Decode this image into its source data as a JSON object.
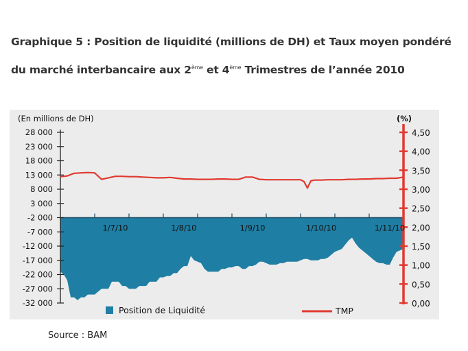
{
  "title": {
    "line1": "Graphique 5 : Position de liquidité (millions de DH) et Taux moyen pondéré",
    "line2_pre": "du marché interbancaire aux 2",
    "sup1": "ème",
    "line2_mid": " et 4",
    "sup2": "ème",
    "line2_post": " Trimestres de l’année 2010"
  },
  "source": "Source : BAM",
  "chart_data": {
    "type": "area",
    "left_axis_label": "(En millions de DH)",
    "right_axis_label": "(%)",
    "left_axis": {
      "range": [
        -32000,
        28000
      ],
      "ticks": [
        "28 000",
        "23 000",
        "18 000",
        "13 000",
        "8 000",
        "3 000",
        "-2 000",
        "-7 000",
        "-12 000",
        "-17 000",
        "-22 000",
        "-27 000",
        "-32 000"
      ],
      "tick_values": [
        28000,
        23000,
        18000,
        13000,
        8000,
        3000,
        -2000,
        -7000,
        -12000,
        -17000,
        -22000,
        -27000,
        -32000
      ]
    },
    "right_axis": {
      "range": [
        0,
        4.5
      ],
      "ticks": [
        "4,50",
        "4,00",
        "3,50",
        "3,00",
        "2,50",
        "2,00",
        "1,50",
        "1,00",
        "0,50",
        "0,00"
      ],
      "tick_values": [
        4.5,
        4.0,
        3.5,
        3.0,
        2.5,
        2.0,
        1.5,
        1.0,
        0.5,
        0.0
      ]
    },
    "x_labels": [
      "1/7/10",
      "1/8/10",
      "1/9/10",
      "1/10/10",
      "1/11/10"
    ],
    "x_label_index": [
      16,
      36,
      56,
      76,
      96
    ],
    "x_range": [
      0,
      100
    ],
    "legend": [
      {
        "name": "Position de Liquidité",
        "color": "#1f7ea3"
      },
      {
        "name": "TMP",
        "color": "#e03a30"
      }
    ],
    "series": [
      {
        "name": "Position de Liquidité",
        "axis": "left",
        "color": "#1f7ea3",
        "x": [
          0,
          1,
          2,
          3,
          4,
          5,
          6,
          7,
          8,
          9,
          10,
          11,
          12,
          13,
          14,
          15,
          16,
          17,
          18,
          19,
          20,
          21,
          22,
          23,
          24,
          25,
          26,
          27,
          28,
          29,
          30,
          31,
          32,
          33,
          34,
          35,
          36,
          37,
          38,
          39,
          40,
          41,
          42,
          43,
          44,
          45,
          46,
          47,
          48,
          49,
          50,
          51,
          52,
          53,
          54,
          55,
          56,
          57,
          58,
          59,
          60,
          61,
          62,
          63,
          64,
          65,
          66,
          67,
          68,
          69,
          70,
          71,
          72,
          73,
          74,
          75,
          76,
          77,
          78,
          79,
          80,
          81,
          82,
          83,
          84,
          85,
          86,
          87,
          88,
          89,
          90,
          91,
          92,
          93,
          94,
          95,
          96,
          97,
          98,
          99,
          100
        ],
        "values": [
          -21000,
          -22000,
          -24000,
          -30000,
          -30000,
          -31000,
          -30000,
          -30000,
          -29000,
          -29000,
          -29000,
          -28000,
          -27000,
          -27000,
          -27000,
          -24500,
          -24500,
          -24500,
          -26000,
          -26000,
          -27000,
          -27000,
          -27000,
          -26000,
          -26000,
          -26000,
          -24500,
          -24500,
          -24500,
          -23000,
          -23000,
          -22500,
          -22500,
          -21500,
          -21500,
          -20000,
          -19000,
          -19000,
          -15500,
          -17000,
          -17500,
          -18000,
          -20000,
          -21000,
          -21000,
          -21000,
          -21000,
          -20000,
          -20000,
          -19500,
          -19500,
          -19000,
          -19000,
          -20000,
          -20000,
          -19000,
          -19000,
          -18500,
          -17500,
          -17500,
          -18000,
          -18500,
          -18500,
          -18500,
          -18000,
          -18000,
          -17500,
          -17500,
          -17500,
          -17500,
          -17000,
          -16500,
          -16500,
          -17000,
          -17000,
          -17000,
          -16500,
          -16500,
          -16000,
          -15000,
          -14000,
          -13500,
          -13000,
          -11500,
          -10000,
          -9000,
          -11000,
          -12500,
          -13500,
          -14500,
          -15500,
          -16500,
          -17500,
          -18000,
          -18000,
          -18500,
          -18500,
          -16000,
          -14000,
          -13500,
          -13000
        ]
      },
      {
        "name": "TMP",
        "axis": "right",
        "color": "#e03a30",
        "x": [
          0,
          2,
          4,
          6,
          8,
          10,
          12,
          14,
          16,
          18,
          20,
          22,
          24,
          26,
          28,
          30,
          32,
          34,
          36,
          38,
          40,
          42,
          44,
          46,
          48,
          50,
          52,
          54,
          56,
          58,
          60,
          62,
          64,
          66,
          68,
          70,
          71,
          72,
          73,
          74,
          76,
          78,
          80,
          82,
          84,
          86,
          88,
          90,
          92,
          94,
          96,
          98,
          100
        ],
        "values": [
          3.33,
          3.35,
          3.42,
          3.43,
          3.44,
          3.43,
          3.26,
          3.3,
          3.34,
          3.34,
          3.33,
          3.33,
          3.32,
          3.31,
          3.3,
          3.3,
          3.31,
          3.29,
          3.27,
          3.27,
          3.26,
          3.26,
          3.26,
          3.27,
          3.27,
          3.26,
          3.26,
          3.32,
          3.32,
          3.26,
          3.25,
          3.25,
          3.25,
          3.25,
          3.25,
          3.25,
          3.2,
          3.03,
          3.22,
          3.24,
          3.24,
          3.25,
          3.25,
          3.25,
          3.26,
          3.26,
          3.27,
          3.27,
          3.28,
          3.28,
          3.29,
          3.29,
          3.32
        ]
      }
    ]
  }
}
